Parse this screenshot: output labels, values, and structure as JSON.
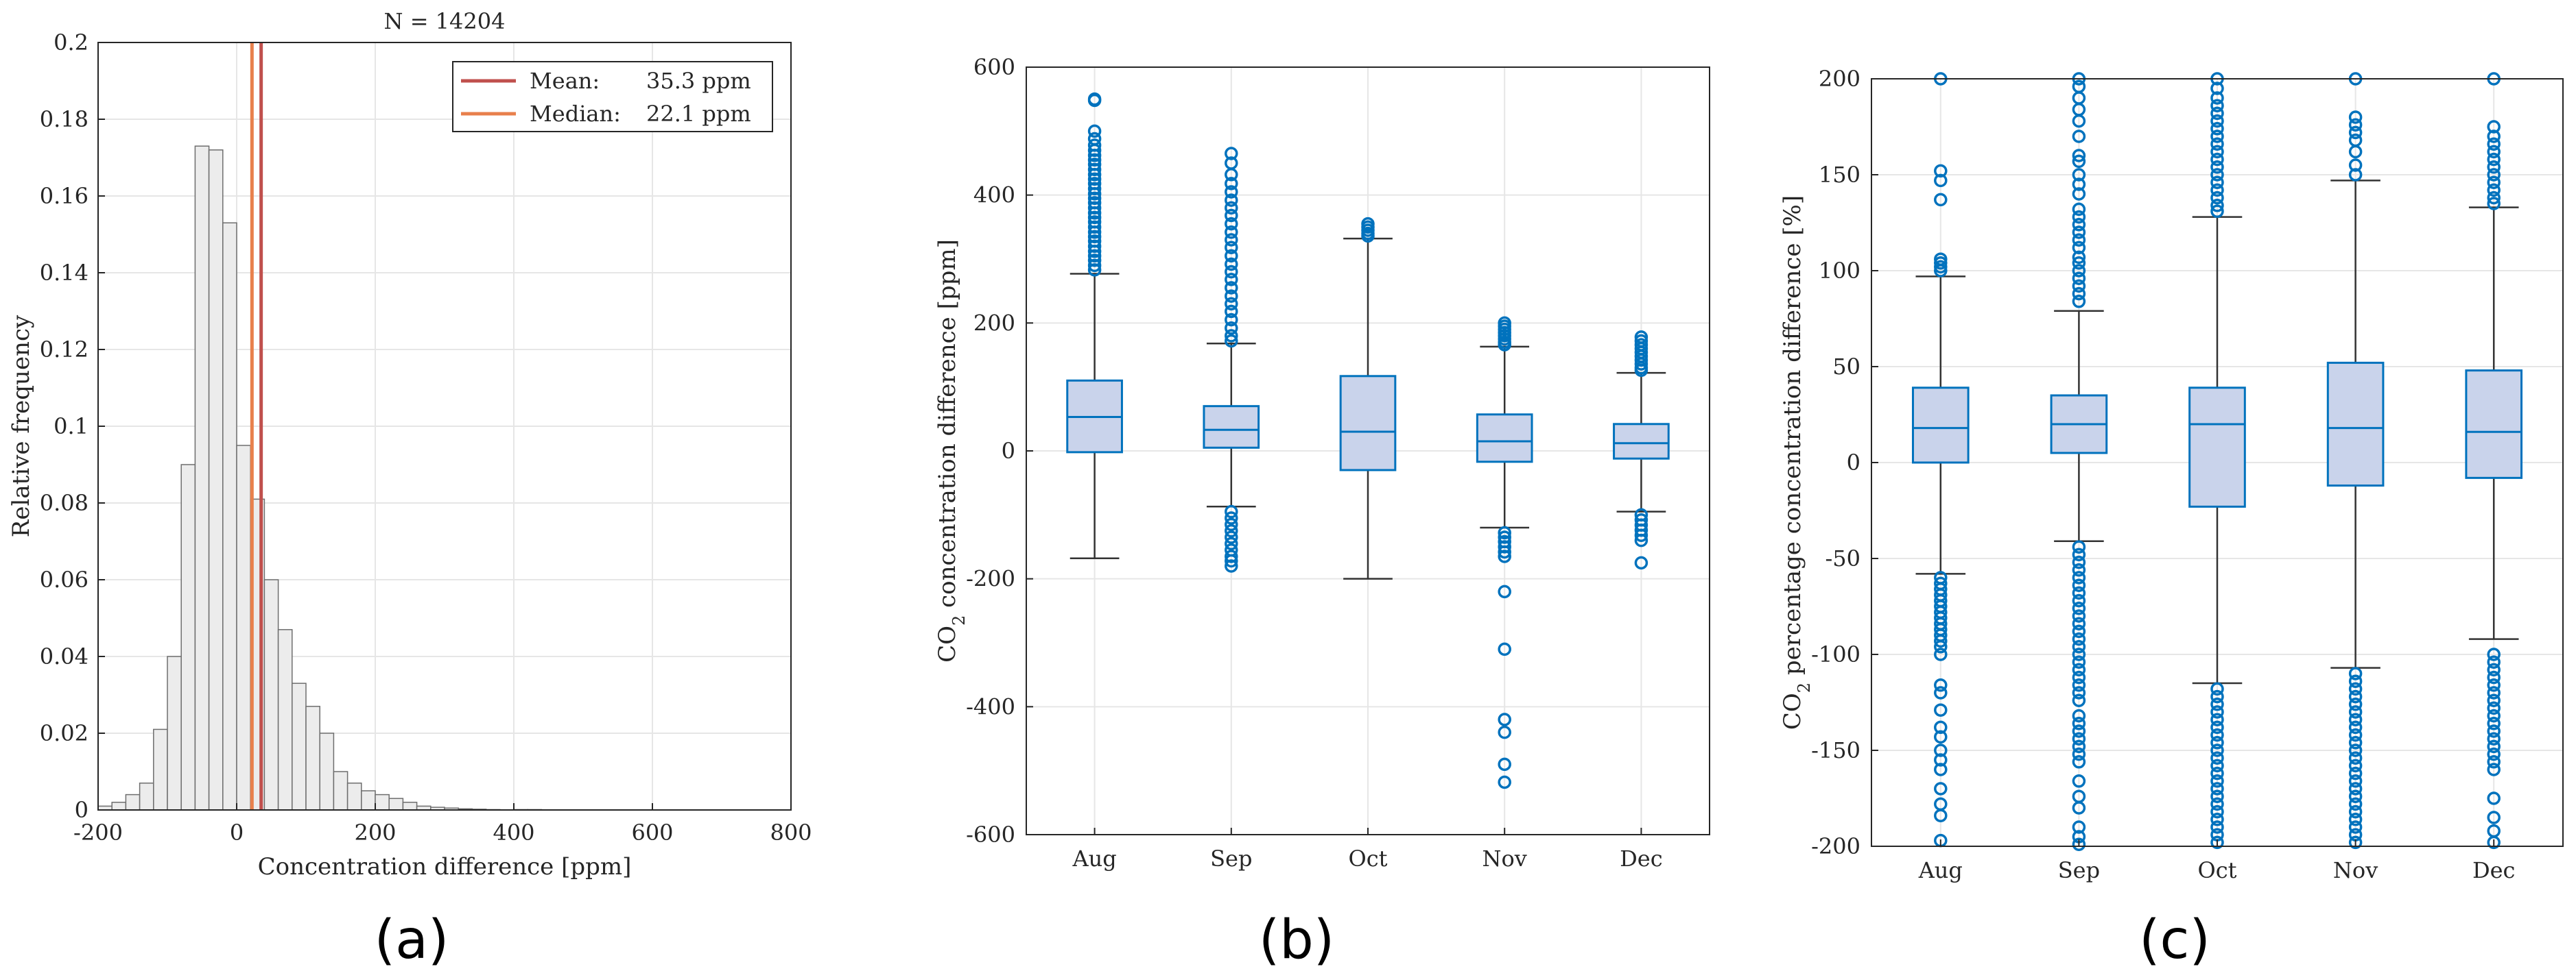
{
  "colors": {
    "bar_fill": "#ececec",
    "bar_edge": "#6e6e6e",
    "mean_line": "#c0504d",
    "median_line": "#e8804c",
    "box_edge": "#0072bd",
    "box_fill": "#c9d3eb",
    "whisker": "#333333",
    "grid": "#e6e6e6",
    "axis": "#262626"
  },
  "chart_data": [
    {
      "panel": "(a)",
      "type": "bar",
      "title": "N = 14204",
      "xlabel": "Concentration difference [ppm]",
      "ylabel": "Relative frequency",
      "xlim": [
        -200,
        800
      ],
      "ylim": [
        0,
        0.2
      ],
      "xticks": [
        "-200",
        "0",
        "200",
        "400",
        "600",
        "800"
      ],
      "yticks": [
        "0",
        "0.02",
        "0.04",
        "0.06",
        "0.08",
        "0.1",
        "0.12",
        "0.14",
        "0.16",
        "0.18",
        "0.2"
      ],
      "bin_width": 20,
      "bin_start": -200,
      "values": [
        0.001,
        0.002,
        0.004,
        0.007,
        0.021,
        0.04,
        0.09,
        0.173,
        0.172,
        0.153,
        0.095,
        0.081,
        0.06,
        0.047,
        0.033,
        0.027,
        0.02,
        0.01,
        0.007,
        0.005,
        0.004,
        0.003,
        0.002,
        0.001,
        0.0007,
        0.0005,
        0.0003,
        0.0002,
        0.0001,
        0,
        0.0001,
        0.0001,
        0,
        0,
        0,
        0,
        0,
        0,
        0,
        0,
        0,
        0,
        0,
        0,
        0,
        0,
        0,
        0,
        0,
        0
      ],
      "mean": 35.3,
      "median": 22.1,
      "legend": [
        {
          "label": "Mean:",
          "value": "35.3 ppm"
        },
        {
          "label": "Median:",
          "value": "22.1 ppm"
        }
      ],
      "legend_position": "top-right",
      "grid": true
    },
    {
      "panel": "(b)",
      "type": "box",
      "ylabel_prefix": "CO",
      "ylabel_sub": "2",
      "ylabel_suffix": " concentration difference [ppm]",
      "categories": [
        "Aug",
        "Sep",
        "Oct",
        "Nov",
        "Dec"
      ],
      "ylim": [
        -600,
        600
      ],
      "yticks": [
        "-600",
        "-400",
        "-200",
        "0",
        "200",
        "400",
        "600"
      ],
      "boxes": [
        {
          "q1": -2,
          "median": 53,
          "q3": 110,
          "whisker_low": -168,
          "whisker_high": 277,
          "outliers": [
            550,
            548,
            500,
            488,
            478,
            470,
            462,
            455,
            448,
            440,
            432,
            425,
            418,
            410,
            402,
            395,
            388,
            380,
            372,
            365,
            358,
            350,
            342,
            335,
            328,
            320,
            312,
            305,
            298,
            290,
            283
          ]
        },
        {
          "q1": 5,
          "median": 33,
          "q3": 70,
          "whisker_low": -87,
          "whisker_high": 168,
          "outliers": [
            465,
            450,
            432,
            418,
            405,
            392,
            380,
            368,
            355,
            342,
            330,
            318,
            305,
            292,
            280,
            268,
            255,
            242,
            230,
            218,
            205,
            192,
            180,
            172,
            -95,
            -105,
            -115,
            -125,
            -135,
            -145,
            -155,
            -165,
            -172,
            -180
          ]
        },
        {
          "q1": -30,
          "median": 30,
          "q3": 117,
          "whisker_low": -200,
          "whisker_high": 332,
          "outliers": [
            355,
            350,
            345,
            340,
            336
          ]
        },
        {
          "q1": -17,
          "median": 15,
          "q3": 57,
          "whisker_low": -120,
          "whisker_high": 163,
          "outliers": [
            200,
            195,
            190,
            185,
            180,
            175,
            170,
            166,
            -128,
            -135,
            -142,
            -150,
            -158,
            -165,
            -220,
            -310,
            -420,
            -440,
            -490,
            -518
          ]
        },
        {
          "q1": -12,
          "median": 12,
          "q3": 42,
          "whisker_low": -95,
          "whisker_high": 122,
          "outliers": [
            178,
            172,
            166,
            160,
            154,
            148,
            142,
            136,
            130,
            126,
            -100,
            -108,
            -116,
            -124,
            -132,
            -140,
            -175
          ]
        }
      ],
      "grid": true
    },
    {
      "panel": "(c)",
      "type": "box",
      "ylabel_prefix": "CO",
      "ylabel_sub": "2",
      "ylabel_suffix": " percentage concentration difference [%]",
      "categories": [
        "Aug",
        "Sep",
        "Oct",
        "Nov",
        "Dec"
      ],
      "ylim": [
        -200,
        200
      ],
      "yticks": [
        "-200",
        "-150",
        "-100",
        "-50",
        "0",
        "50",
        "100",
        "150",
        "200"
      ],
      "boxes": [
        {
          "q1": 0,
          "median": 18,
          "q3": 39,
          "whisker_low": -58,
          "whisker_high": 97,
          "outliers": [
            200,
            152,
            147,
            137,
            106,
            104,
            102,
            100,
            -60,
            -63,
            -66,
            -69,
            -72,
            -75,
            -78,
            -81,
            -84,
            -87,
            -90,
            -93,
            -96,
            -100,
            -116,
            -120,
            -129,
            -138,
            -143,
            -150,
            -155,
            -160,
            -170,
            -178,
            -184,
            -197
          ]
        },
        {
          "q1": 5,
          "median": 20,
          "q3": 35,
          "whisker_low": -41,
          "whisker_high": 79,
          "outliers": [
            200,
            196,
            190,
            184,
            178,
            170,
            160,
            157,
            150,
            145,
            140,
            132,
            128,
            124,
            120,
            116,
            112,
            107,
            104,
            100,
            96,
            92,
            88,
            84,
            -44,
            -48,
            -52,
            -56,
            -60,
            -64,
            -68,
            -72,
            -76,
            -80,
            -84,
            -88,
            -92,
            -96,
            -100,
            -104,
            -108,
            -112,
            -116,
            -120,
            -124,
            -132,
            -136,
            -140,
            -144,
            -148,
            -152,
            -156,
            -166,
            -174,
            -180,
            -190,
            -195,
            -199
          ]
        },
        {
          "q1": -23,
          "median": 20,
          "q3": 39,
          "whisker_low": -115,
          "whisker_high": 128,
          "outliers": [
            200,
            195,
            190,
            186,
            182,
            178,
            174,
            170,
            166,
            162,
            158,
            154,
            150,
            146,
            142,
            138,
            134,
            131,
            -118,
            -122,
            -126,
            -130,
            -134,
            -138,
            -142,
            -146,
            -150,
            -154,
            -158,
            -162,
            -166,
            -170,
            -174,
            -178,
            -182,
            -186,
            -190,
            -194,
            -198
          ]
        },
        {
          "q1": -12,
          "median": 18,
          "q3": 52,
          "whisker_low": -107,
          "whisker_high": 147,
          "outliers": [
            200,
            180,
            176,
            172,
            168,
            162,
            155,
            150,
            -110,
            -114,
            -118,
            -122,
            -126,
            -130,
            -134,
            -138,
            -142,
            -146,
            -150,
            -154,
            -158,
            -162,
            -166,
            -170,
            -174,
            -178,
            -182,
            -186,
            -190,
            -194,
            -198
          ]
        },
        {
          "q1": -8,
          "median": 16,
          "q3": 48,
          "whisker_low": -92,
          "whisker_high": 133,
          "outliers": [
            200,
            175,
            170,
            166,
            162,
            158,
            154,
            150,
            146,
            142,
            138,
            135,
            -100,
            -104,
            -108,
            -112,
            -116,
            -120,
            -124,
            -128,
            -132,
            -136,
            -140,
            -144,
            -148,
            -152,
            -156,
            -160,
            -175,
            -185,
            -192,
            -198
          ]
        }
      ],
      "grid": true
    }
  ]
}
